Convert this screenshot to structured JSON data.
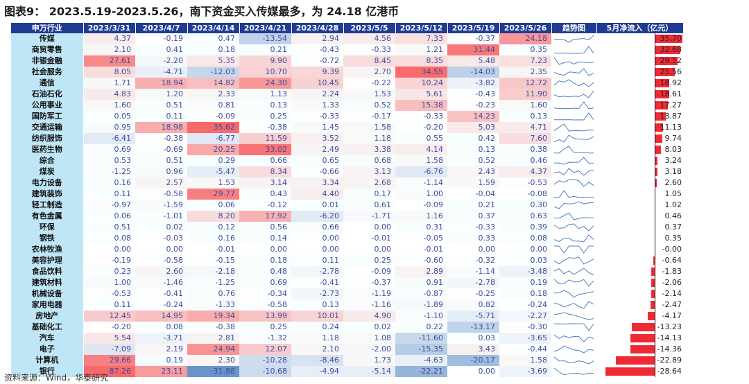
{
  "title": "图表9： 2023.5.19-2023.5.26，南下资金买入传媒最多，为 24.18 亿港币",
  "source": "资料来源：Wind，华泰研究",
  "headers": {
    "industry": "申万行业",
    "dates": [
      "2023/3/31",
      "2023/4/7",
      "2023/4/14",
      "2023/4/21",
      "2023/4/28",
      "2023/5/5",
      "2023/5/12",
      "2023/5/19",
      "2023/5/26"
    ],
    "trend": "趋势图",
    "may": "5月净流入（亿元）"
  },
  "colors": {
    "header_bg": "#1f3b92",
    "industry_bg": "#bfe6f6",
    "bar": "#f02a35",
    "pos": "#f8696b",
    "neg": "#5a8ac6"
  },
  "rows": [
    {
      "industry": "传媒",
      "values": [
        "4.37",
        "-0.19",
        "0.47",
        "-13.54",
        "2.94",
        "4.56",
        "7.33",
        "-0.37",
        "24.18"
      ],
      "may": "35.70"
    },
    {
      "industry": "商贸零售",
      "values": [
        "2.10",
        "0.41",
        "0.18",
        "0.21",
        "-0.43",
        "-0.33",
        "1.21",
        "31.44",
        "0.35"
      ],
      "may": "32.68"
    },
    {
      "industry": "非银金融",
      "values": [
        "27.61",
        "-2.20",
        "5.35",
        "9.90",
        "-0.72",
        "8.45",
        "8.35",
        "5.48",
        "7.23"
      ],
      "may": "29.52"
    },
    {
      "industry": "社会服务",
      "values": [
        "8.05",
        "-4.71",
        "-12.03",
        "10.70",
        "9.39",
        "2.70",
        "34.55",
        "-14.03",
        "2.35"
      ],
      "may": "25.56"
    },
    {
      "industry": "通信",
      "values": [
        "1.71",
        "18.94",
        "14.82",
        "24.30",
        "10.45",
        "-0.22",
        "10.24",
        "-3.82",
        "12.72"
      ],
      "may": "18.92"
    },
    {
      "industry": "石油石化",
      "values": [
        "4.83",
        "1.20",
        "2.33",
        "1.13",
        "2.24",
        "1.53",
        "5.61",
        "-0.43",
        "11.90"
      ],
      "may": "18.61"
    },
    {
      "industry": "公用事业",
      "values": [
        "1.60",
        "0.51",
        "0.81",
        "0.13",
        "1.33",
        "0.52",
        "15.38",
        "-0.23",
        "1.60"
      ],
      "may": "17.27"
    },
    {
      "industry": "国防军工",
      "values": [
        "0.05",
        "0.11",
        "-0.09",
        "0.25",
        "-0.33",
        "-0.17",
        "-0.33",
        "14.23",
        "0.13"
      ],
      "may": "13.87"
    },
    {
      "industry": "交通运输",
      "values": [
        "0.95",
        "18.98",
        "35.62",
        "-0.38",
        "1.45",
        "1.58",
        "-0.20",
        "5.03",
        "4.71"
      ],
      "may": "11.13"
    },
    {
      "industry": "纺织服饰",
      "values": [
        "-6.41",
        "-0.38",
        "-6.77",
        "11.59",
        "3.52",
        "1.18",
        "0.55",
        "0.42",
        "7.60"
      ],
      "may": "9.74"
    },
    {
      "industry": "医药生物",
      "values": [
        "0.69",
        "-0.69",
        "20.25",
        "33.02",
        "2.49",
        "3.38",
        "4.14",
        "0.13",
        "0.38"
      ],
      "may": "8.03"
    },
    {
      "industry": "综合",
      "values": [
        "0.53",
        "0.51",
        "0.29",
        "0.66",
        "0.65",
        "0.68",
        "1.58",
        "0.52",
        "0.46"
      ],
      "may": "3.24"
    },
    {
      "industry": "煤炭",
      "values": [
        "-1.25",
        "0.96",
        "-5.47",
        "8.34",
        "-0.66",
        "3.13",
        "-6.76",
        "2.43",
        "4.37"
      ],
      "may": "3.18"
    },
    {
      "industry": "电力设备",
      "values": [
        "0.16",
        "2.57",
        "1.53",
        "3.14",
        "3.34",
        "2.68",
        "-1.14",
        "1.59",
        "-0.53"
      ],
      "may": "2.60"
    },
    {
      "industry": "建筑装饰",
      "values": [
        "0.11",
        "-0.58",
        "29.77",
        "0.43",
        "4.40",
        "0.17",
        "1.00",
        "-0.04",
        "-0.08"
      ],
      "may": "1.05"
    },
    {
      "industry": "轻工制造",
      "values": [
        "-0.97",
        "-1.59",
        "0.06",
        "-0.12",
        "0.01",
        "0.61",
        "-0.09",
        "0.21",
        "0.30"
      ],
      "may": "1.02"
    },
    {
      "industry": "有色金属",
      "values": [
        "0.06",
        "-1.01",
        "8.20",
        "17.92",
        "-6.20",
        "-1.71",
        "1.16",
        "0.37",
        "0.63"
      ],
      "may": "0.46"
    },
    {
      "industry": "环保",
      "values": [
        "0.51",
        "0.02",
        "0.12",
        "0.56",
        "0.66",
        "0.00",
        "0.31",
        "-0.33",
        "0.39"
      ],
      "may": "0.37"
    },
    {
      "industry": "钢铁",
      "values": [
        "0.08",
        "-0.03",
        "0.16",
        "0.14",
        "0.00",
        "-0.01",
        "-0.05",
        "0.33",
        "0.08"
      ],
      "may": "0.35"
    },
    {
      "industry": "农林牧渔",
      "values": [
        "0.00",
        "0.00",
        "-0.01",
        "0.00",
        "0.00",
        "0.00",
        "-0.01",
        "0.00",
        "0.00"
      ],
      "may": "-0.00"
    },
    {
      "industry": "美容护理",
      "values": [
        "-0.19",
        "-0.58",
        "-0.15",
        "0.18",
        "0.11",
        "0.25",
        "-0.60",
        "-0.32",
        "0.03"
      ],
      "may": "-0.64"
    },
    {
      "industry": "食品饮料",
      "values": [
        "0.23",
        "2.60",
        "-2.18",
        "0.48",
        "-2.78",
        "-0.09",
        "2.89",
        "-1.14",
        "-3.48"
      ],
      "may": "-1.83"
    },
    {
      "industry": "建筑材料",
      "values": [
        "1.00",
        "-1.46",
        "-1.25",
        "0.69",
        "-0.41",
        "-0.37",
        "0.91",
        "-2.78",
        "0.19"
      ],
      "may": "-2.06"
    },
    {
      "industry": "机械设备",
      "values": [
        "-0.53",
        "-0.41",
        "0.76",
        "-0.34",
        "-2.73",
        "-1.19",
        "-0.87",
        "-0.25",
        "0.18"
      ],
      "may": "-2.14"
    },
    {
      "industry": "家用电器",
      "values": [
        "0.11",
        "-0.24",
        "-1.33",
        "-0.58",
        "0.13",
        "-1.16",
        "-1.89",
        "0.82",
        "-0.24"
      ],
      "may": "-2.47"
    },
    {
      "industry": "房地产",
      "values": [
        "12.45",
        "14.95",
        "19.34",
        "13.99",
        "10.01",
        "4.90",
        "-1.10",
        "-5.71",
        "-2.27"
      ],
      "may": "-4.17"
    },
    {
      "industry": "基础化工",
      "values": [
        "-0.20",
        "0.08",
        "-0.38",
        "0.25",
        "0.24",
        "0.02",
        "0.22",
        "-13.17",
        "-0.30"
      ],
      "may": "-13.23"
    },
    {
      "industry": "汽车",
      "values": [
        "5.54",
        "-3.71",
        "2.81",
        "-1.32",
        "1.18",
        "1.08",
        "-11.60",
        "0.03",
        "-3.65"
      ],
      "may": "-14.13"
    },
    {
      "industry": "电子",
      "values": [
        "-7.09",
        "2.19",
        "24.94",
        "12.07",
        "2.10",
        "-2.00",
        "-15.35",
        "3.43",
        "-0.44"
      ],
      "may": "-14.36"
    },
    {
      "industry": "计算机",
      "values": [
        "29.66",
        "0.19",
        "2.30",
        "-10.28",
        "-8.46",
        "1.73",
        "-4.63",
        "-20.17",
        "1.58"
      ],
      "may": "-22.89"
    },
    {
      "industry": "银行",
      "values": [
        "87.26",
        "23.11",
        "-31.88",
        "-10.68",
        "-4.94",
        "-5.14",
        "-22.21",
        "0.00",
        "-3.69"
      ],
      "may": "-28.64"
    }
  ]
}
